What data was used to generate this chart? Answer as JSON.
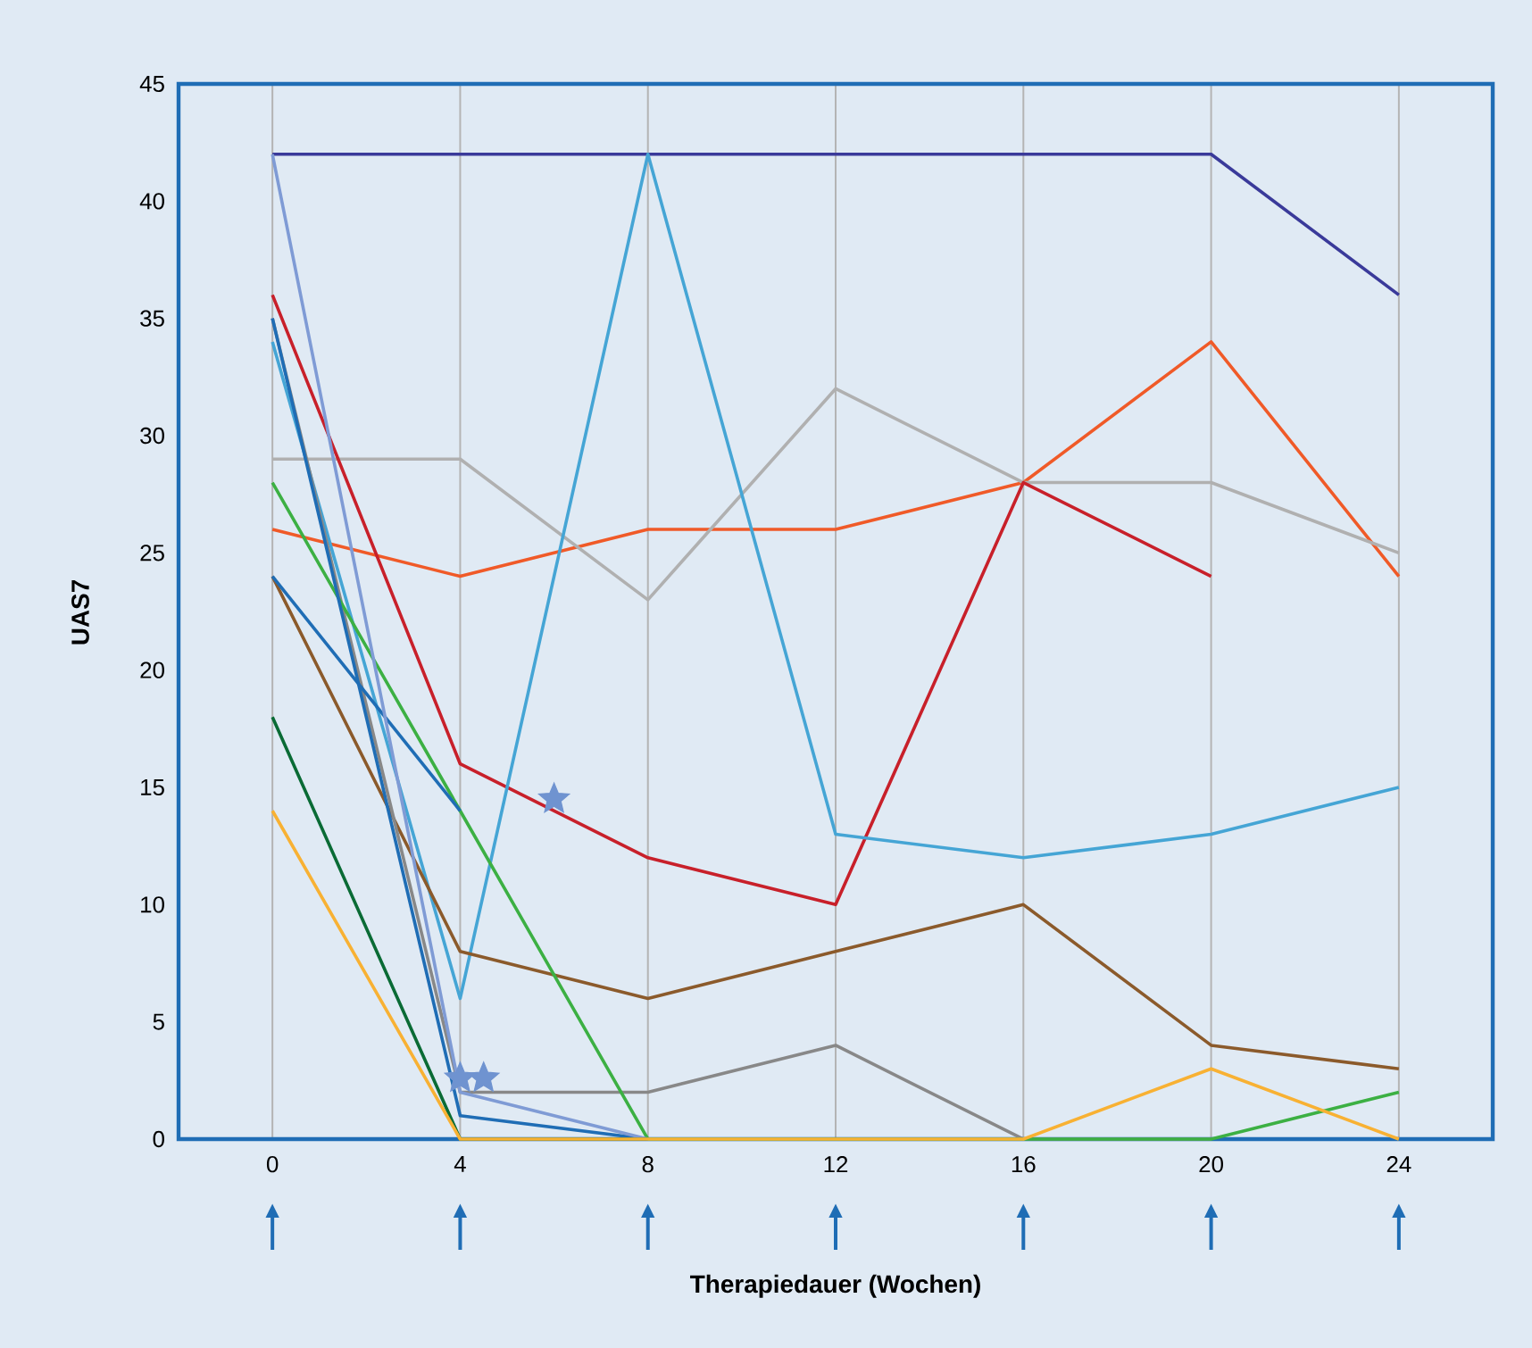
{
  "chart_data": {
    "type": "line",
    "xlabel": "Therapiedauer (Wochen)",
    "ylabel": "UAS7",
    "x": [
      0,
      4,
      8,
      12,
      16,
      20,
      24
    ],
    "xlim": [
      -2,
      26
    ],
    "xticks": [
      0,
      4,
      8,
      12,
      16,
      20,
      24
    ],
    "ylim": [
      0,
      45
    ],
    "yticks": [
      0,
      5,
      10,
      15,
      20,
      25,
      30,
      35,
      40,
      45
    ],
    "grid": "x",
    "marker": "none",
    "line_style": "solid",
    "series": [
      {
        "color": "#3a3a9a",
        "values": [
          42,
          42,
          42,
          42,
          42,
          42,
          36
        ]
      },
      {
        "color": "#f05a28",
        "values": [
          26,
          24,
          26,
          26,
          28,
          34,
          24
        ]
      },
      {
        "color": "#b0b0b0",
        "values": [
          29,
          29,
          23,
          32,
          28,
          28,
          25
        ]
      },
      {
        "color": "#c8202a",
        "values": [
          36,
          16,
          12,
          10,
          28,
          24,
          null
        ]
      },
      {
        "color": "#45a5d5",
        "values": [
          34,
          6,
          42,
          13,
          12,
          13,
          15
        ]
      },
      {
        "color": "#8b5a2b",
        "values": [
          24,
          8,
          6,
          8,
          10,
          4,
          3
        ]
      },
      {
        "color": "#888888",
        "values": [
          35,
          2,
          2,
          4,
          0,
          0,
          null
        ]
      },
      {
        "color": "#3cb043",
        "values": [
          28,
          14,
          0,
          0,
          0,
          0,
          2
        ]
      },
      {
        "color": "#1f6db5",
        "values": [
          24,
          14,
          null,
          null,
          null,
          null,
          null
        ]
      },
      {
        "color": "#1f6db5",
        "values": [
          35,
          1,
          0,
          null,
          null,
          null,
          null
        ]
      },
      {
        "color": "#7f9bd5",
        "values": [
          42,
          2,
          0,
          null,
          null,
          null,
          null
        ]
      },
      {
        "color": "#0a6b35",
        "values": [
          18,
          0,
          0,
          null,
          null,
          null,
          null
        ]
      },
      {
        "color": "#f8b133",
        "values": [
          14,
          0,
          0,
          0,
          0,
          3,
          0
        ]
      },
      {
        "type": "scatter",
        "marker": "star",
        "color": "#6f93d0",
        "x": [
          6,
          4,
          4.5
        ],
        "values": [
          14.5,
          2.6,
          2.6
        ]
      }
    ]
  }
}
